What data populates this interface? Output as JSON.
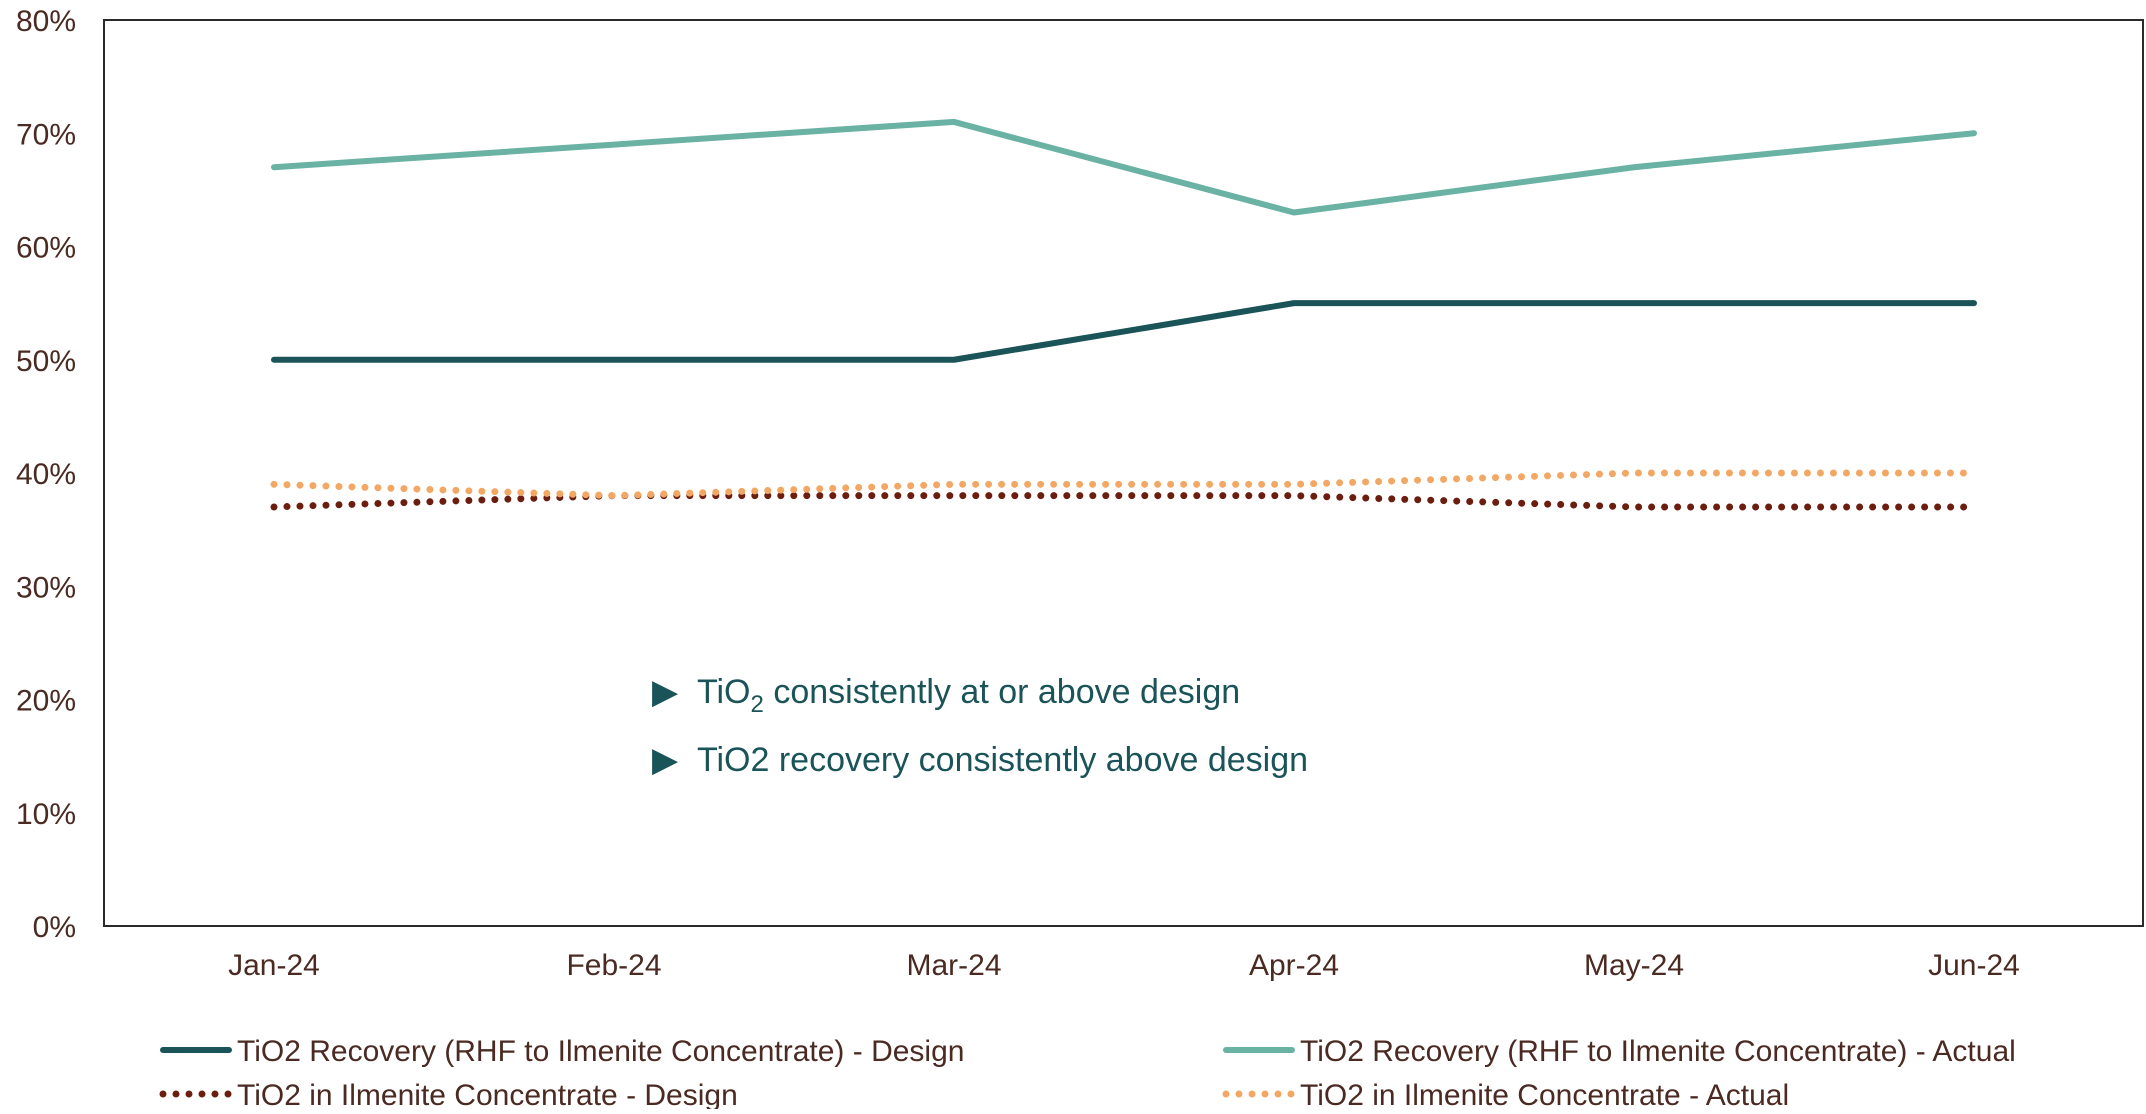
{
  "chart_data": {
    "type": "line",
    "categories": [
      "Jan-24",
      "Feb-24",
      "Mar-24",
      "Apr-24",
      "May-24",
      "Jun-24"
    ],
    "ylim": [
      0,
      0.8
    ],
    "yticks": [
      0,
      0.1,
      0.2,
      0.3,
      0.4,
      0.5,
      0.6,
      0.7,
      0.8
    ],
    "ytick_labels": [
      "0%",
      "10%",
      "20%",
      "30%",
      "40%",
      "50%",
      "60%",
      "70%",
      "80%"
    ],
    "grid": false,
    "legend_position": "bottom",
    "series": [
      {
        "name": "TiO2 Recovery (RHF to Ilmenite Concentrate) - Design",
        "values": [
          0.5,
          0.5,
          0.5,
          0.55,
          0.55,
          0.55
        ],
        "color": "#1b5458",
        "style": "solid"
      },
      {
        "name": "TiO2 Recovery (RHF to Ilmenite Concentrate) - Actual",
        "values": [
          0.67,
          0.69,
          0.71,
          0.63,
          0.67,
          0.7
        ],
        "color": "#6ab2a3",
        "style": "solid"
      },
      {
        "name": "TiO2 in Ilmenite Concentrate - Design",
        "values": [
          0.37,
          0.38,
          0.38,
          0.38,
          0.37,
          0.37
        ],
        "color": "#6b1e0f",
        "style": "dotted"
      },
      {
        "name": "TiO2 in Ilmenite Concentrate - Actual",
        "values": [
          0.39,
          0.38,
          0.39,
          0.39,
          0.4,
          0.4
        ],
        "color": "#f2a864",
        "style": "dotted"
      }
    ],
    "annotations": [
      {
        "bullet": "▶",
        "text_pre": "TiO",
        "text_sub": "2",
        "text_post": " consistently at or above design"
      },
      {
        "bullet": "▶",
        "text": "TiO2 recovery consistently above design"
      }
    ]
  }
}
